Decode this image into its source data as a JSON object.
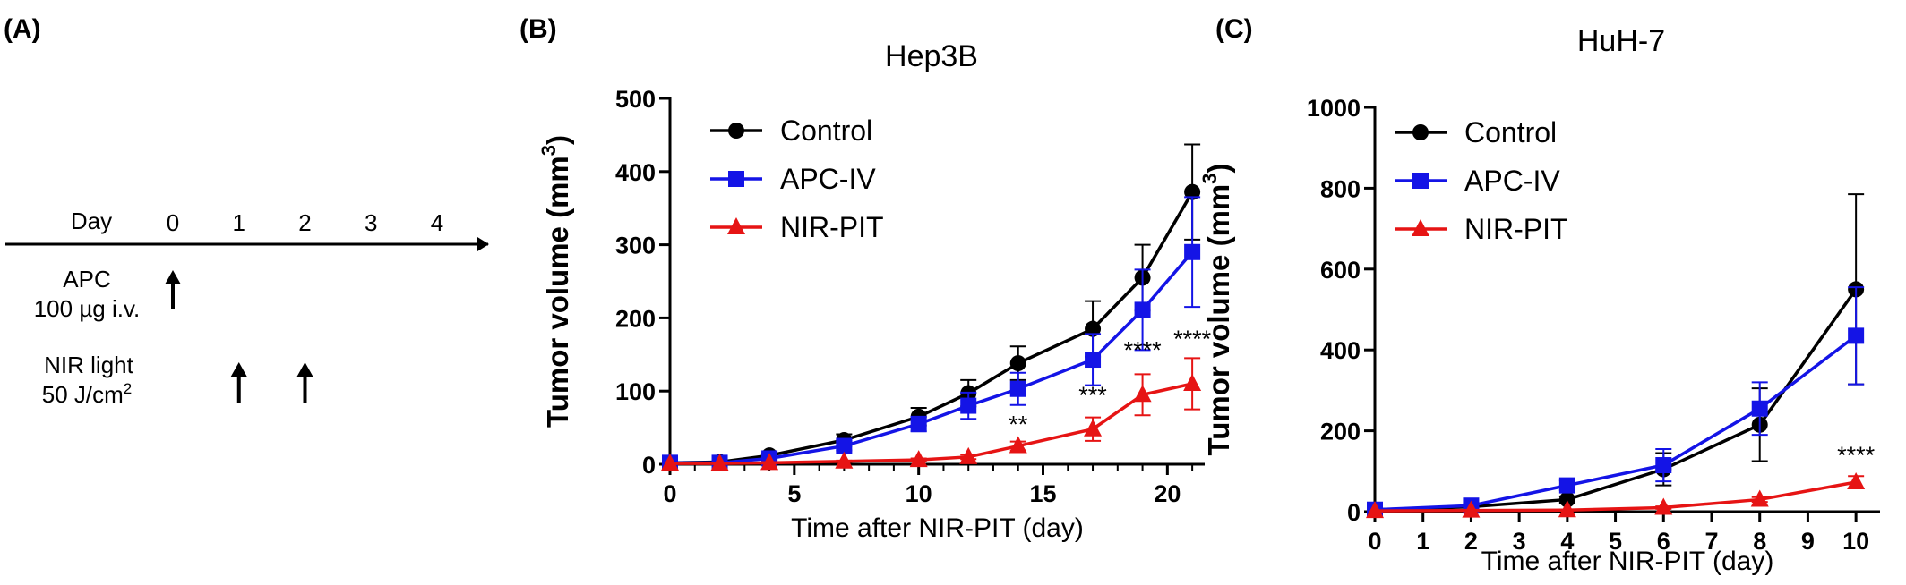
{
  "panels": {
    "a": {
      "letter": "(A)",
      "day_label": "Day",
      "days": [
        "0",
        "1",
        "2",
        "3",
        "4"
      ],
      "apc_line1": "APC",
      "apc_line2": "100 µg i.v.",
      "nir_line1": "NIR light",
      "nir_line2": "50 J/cm",
      "nir_sup": "2",
      "apc_arrow_days": [
        0
      ],
      "nir_arrow_days": [
        1,
        2
      ]
    },
    "b": {
      "letter": "(B)"
    },
    "c": {
      "letter": "(C)"
    }
  },
  "colors": {
    "control": "#000000",
    "apc_iv": "#1414e6",
    "nir_pit": "#e61414"
  },
  "chart_data": [
    {
      "type": "line",
      "title": "Hep3B",
      "xlabel": "Time after NIR-PIT (day)",
      "ylabel": "Tumor volume (mm",
      "ylabel_sup": "3",
      "ylabel_close": ")",
      "xlim": [
        0,
        21.5
      ],
      "ylim": [
        0,
        500
      ],
      "xticks": [
        0,
        5,
        10,
        15,
        20
      ],
      "yticks": [
        0,
        100,
        200,
        300,
        400,
        500
      ],
      "legend": "top-left",
      "series": [
        {
          "name": "Control",
          "marker": "circle",
          "color": "#000000",
          "x": [
            0,
            2,
            4,
            7,
            10,
            12,
            14,
            17,
            19,
            21
          ],
          "y": [
            2,
            3,
            12,
            33,
            65,
            97,
            138,
            185,
            255,
            372
          ],
          "err": [
            1,
            1,
            3,
            8,
            12,
            18,
            23,
            38,
            45,
            65
          ]
        },
        {
          "name": "APC-IV",
          "marker": "square",
          "color": "#1414e6",
          "x": [
            0,
            2,
            4,
            7,
            10,
            12,
            14,
            17,
            19,
            21
          ],
          "y": [
            2,
            2,
            8,
            25,
            55,
            80,
            103,
            143,
            211,
            290
          ],
          "err": [
            1,
            1,
            2,
            6,
            10,
            18,
            22,
            35,
            55,
            75
          ]
        },
        {
          "name": "NIR-PIT",
          "marker": "triangle",
          "color": "#e61414",
          "x": [
            0,
            2,
            4,
            7,
            10,
            12,
            14,
            17,
            19,
            21
          ],
          "y": [
            1,
            1,
            2,
            4,
            6,
            10,
            25,
            48,
            95,
            110
          ],
          "err": [
            0,
            0,
            1,
            1,
            2,
            3,
            6,
            16,
            28,
            35
          ]
        }
      ],
      "annotations": [
        {
          "x": 14,
          "y": 25,
          "text": "**"
        },
        {
          "x": 17,
          "y": 48,
          "text": "***"
        },
        {
          "x": 19,
          "y": 95,
          "text": "****"
        },
        {
          "x": 21,
          "y": 110,
          "text": "****"
        }
      ]
    },
    {
      "type": "line",
      "title": "HuH-7",
      "xlabel": "Time after NIR-PIT (day)",
      "ylabel": "Tumor volume (mm",
      "ylabel_sup": "3",
      "ylabel_close": ")",
      "xlim": [
        0,
        10.5
      ],
      "ylim": [
        0,
        1000
      ],
      "xticks": [
        0,
        1,
        2,
        3,
        4,
        5,
        6,
        7,
        8,
        9,
        10
      ],
      "yticks": [
        0,
        200,
        400,
        600,
        800,
        1000
      ],
      "legend": "top-left",
      "series": [
        {
          "name": "Control",
          "marker": "circle",
          "color": "#000000",
          "x": [
            0,
            2,
            4,
            6,
            8,
            10
          ],
          "y": [
            5,
            12,
            30,
            105,
            215,
            550
          ],
          "err": [
            2,
            3,
            8,
            40,
            90,
            235
          ]
        },
        {
          "name": "APC-IV",
          "marker": "square",
          "color": "#1414e6",
          "x": [
            0,
            2,
            4,
            6,
            8,
            10
          ],
          "y": [
            5,
            15,
            65,
            115,
            255,
            435
          ],
          "err": [
            2,
            4,
            12,
            40,
            65,
            120
          ]
        },
        {
          "name": "NIR-PIT",
          "marker": "triangle",
          "color": "#e61414",
          "x": [
            0,
            2,
            4,
            6,
            8,
            10
          ],
          "y": [
            2,
            3,
            4,
            10,
            30,
            73
          ],
          "err": [
            0,
            1,
            1,
            3,
            6,
            15
          ]
        }
      ],
      "annotations": [
        {
          "x": 10,
          "y": 73,
          "text": "****"
        }
      ]
    }
  ]
}
